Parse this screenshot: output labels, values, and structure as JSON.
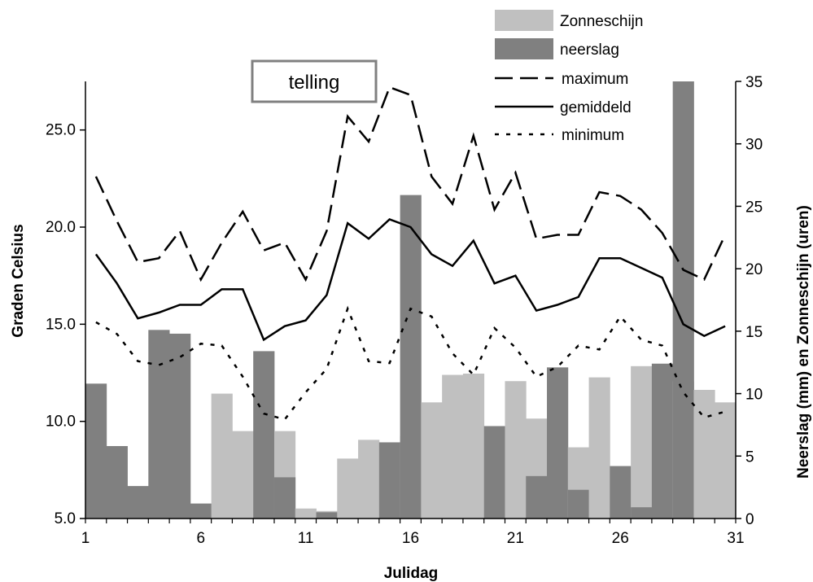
{
  "chart_data": {
    "type": "bar",
    "xlabel": "Julidag",
    "ylabel_left": "Graden Celsius",
    "ylabel_right": "Neerslag (mm) en Zonneschijn (uren)",
    "annotation": "telling",
    "x": [
      1,
      2,
      3,
      4,
      5,
      6,
      7,
      8,
      9,
      10,
      11,
      12,
      13,
      14,
      15,
      16,
      17,
      18,
      19,
      20,
      21,
      22,
      23,
      24,
      25,
      26,
      27,
      28,
      29,
      30,
      31
    ],
    "x_ticks": [
      "1",
      "6",
      "11",
      "16",
      "21",
      "26",
      "31"
    ],
    "y_left_ticks": [
      "5.0",
      "10.0",
      "15.0",
      "20.0",
      "25.0"
    ],
    "y_left_range": [
      5,
      27.5
    ],
    "y_right_ticks": [
      "0",
      "5",
      "10",
      "15",
      "20",
      "25",
      "30",
      "35"
    ],
    "y_right_range": [
      0,
      35
    ],
    "legend_position": "top-right",
    "colors": {
      "zonneschijn": "#c0c0c0",
      "neerslag": "#808080",
      "line": "#000000"
    },
    "series": [
      {
        "name": "Zonneschijn",
        "type": "bar",
        "axis": "right",
        "values": [
          0,
          0,
          0,
          0,
          0,
          0,
          10,
          7,
          0,
          7,
          0.8,
          0.6,
          4.8,
          6.3,
          0,
          6.6,
          9.3,
          11.5,
          11.6,
          0,
          11,
          8,
          0,
          5.7,
          11.3,
          0,
          12.2,
          0,
          11,
          10.3,
          9.3
        ]
      },
      {
        "name": "neerslag",
        "type": "bar",
        "axis": "right",
        "values": [
          10.8,
          5.8,
          2.6,
          15.1,
          14.8,
          1.2,
          0,
          0,
          13.4,
          3.3,
          0,
          0.5,
          0,
          0,
          6.1,
          25.9,
          0,
          0,
          0,
          7.4,
          0,
          3.4,
          12.1,
          2.3,
          0,
          4.2,
          0.9,
          12.4,
          35,
          0,
          0
        ]
      },
      {
        "name": "maximum",
        "type": "line",
        "style": "dashed",
        "axis": "left",
        "values": [
          22.6,
          20.3,
          18.2,
          18.4,
          19.8,
          17.3,
          19.2,
          20.8,
          18.8,
          19.2,
          17.3,
          19.8,
          25.7,
          24.4,
          27.2,
          26.8,
          22.6,
          21.2,
          24.7,
          20.9,
          22.8,
          19.4,
          19.6,
          19.6,
          21.8,
          21.6,
          20.9,
          19.7,
          17.8,
          17.3,
          19.6
        ]
      },
      {
        "name": "gemiddeld",
        "type": "line",
        "style": "solid",
        "axis": "left",
        "values": [
          18.6,
          17.1,
          15.3,
          15.6,
          16.0,
          16.0,
          16.8,
          16.8,
          14.2,
          14.9,
          15.2,
          16.5,
          20.2,
          19.4,
          20.4,
          20.0,
          18.6,
          18.0,
          19.3,
          17.1,
          17.5,
          15.7,
          16.0,
          16.4,
          18.4,
          18.4,
          17.9,
          17.4,
          15.0,
          14.4,
          14.9
        ]
      },
      {
        "name": "minimum",
        "type": "line",
        "style": "dotted",
        "axis": "left",
        "values": [
          15.1,
          14.5,
          13.1,
          12.9,
          13.3,
          14.0,
          13.9,
          12.3,
          10.4,
          10.1,
          11.5,
          12.7,
          15.8,
          13.1,
          13.0,
          15.8,
          15.4,
          13.5,
          12.4,
          14.8,
          13.8,
          12.3,
          12.8,
          13.9,
          13.7,
          15.4,
          14.2,
          13.9,
          11.5,
          10.2,
          10.5
        ]
      }
    ]
  }
}
